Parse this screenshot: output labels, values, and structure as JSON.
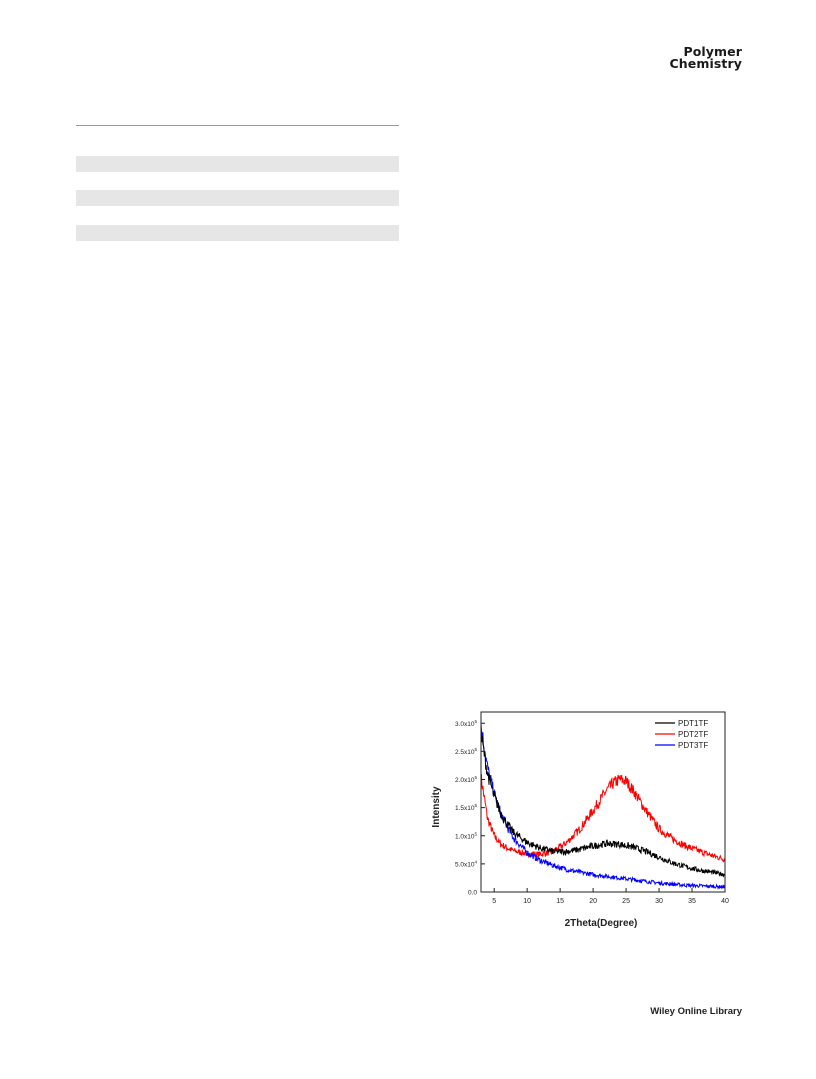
{
  "header": {
    "journal_line1": "Polymer",
    "journal_line2": "Chemistry"
  },
  "table": {
    "shaded_rows": 3
  },
  "footer": {
    "publisher": "Wiley Online Library"
  },
  "chart_data": {
    "type": "line",
    "xlabel": "2Theta(Degree)",
    "ylabel": "Intensity",
    "xlim": [
      3,
      40
    ],
    "ylim": [
      0,
      320000
    ],
    "x_ticks": [
      5,
      10,
      15,
      20,
      25,
      30,
      35,
      40
    ],
    "x_tick_labels": [
      "5",
      "10",
      "15",
      "20",
      "25",
      "30",
      "35",
      "40"
    ],
    "y_ticks": [
      0,
      50000,
      100000,
      150000,
      200000,
      250000,
      300000
    ],
    "y_tick_mantissas": [
      "0.0",
      "5.0x10",
      "1.0x10",
      "1.5x10",
      "2.0x10",
      "2.5x10",
      "3.0x10"
    ],
    "y_tick_exponents": [
      "",
      "4",
      "5",
      "5",
      "5",
      "5",
      "5"
    ],
    "legend_position": "top-right",
    "grid": false,
    "series": [
      {
        "name": "PDT1TF",
        "color": "#000000",
        "x": [
          3,
          4,
          5,
          6,
          7,
          8,
          10,
          12,
          14,
          16,
          18,
          20,
          22,
          24,
          26,
          28,
          30,
          32,
          34,
          36,
          38,
          40
        ],
        "y": [
          280000,
          210000,
          170000,
          140000,
          120000,
          105000,
          88000,
          78000,
          72000,
          72000,
          76000,
          82000,
          86000,
          85000,
          80000,
          72000,
          62000,
          52000,
          45000,
          39000,
          35000,
          31000
        ]
      },
      {
        "name": "PDT2TF",
        "color": "#ff0000",
        "x": [
          3,
          4,
          5,
          6,
          7,
          8,
          10,
          12,
          14,
          16,
          18,
          20,
          22,
          23,
          24,
          25,
          26,
          28,
          30,
          32,
          34,
          36,
          38,
          40
        ],
        "y": [
          205000,
          130000,
          100000,
          85000,
          78000,
          73000,
          68000,
          67000,
          72000,
          88000,
          112000,
          145000,
          180000,
          193000,
          200000,
          197000,
          182000,
          145000,
          112000,
          95000,
          82000,
          73000,
          65000,
          58000
        ]
      },
      {
        "name": "PDT3TF",
        "color": "#0000ff",
        "x": [
          3,
          4,
          5,
          6,
          7,
          8,
          10,
          12,
          14,
          16,
          18,
          20,
          22,
          24,
          26,
          28,
          30,
          32,
          34,
          36,
          38,
          40
        ],
        "y": [
          295000,
          220000,
          175000,
          140000,
          115000,
          95000,
          70000,
          56000,
          47000,
          40000,
          35000,
          31000,
          28000,
          25000,
          22000,
          19000,
          16000,
          14000,
          12000,
          11000,
          10000,
          9000
        ]
      }
    ]
  }
}
